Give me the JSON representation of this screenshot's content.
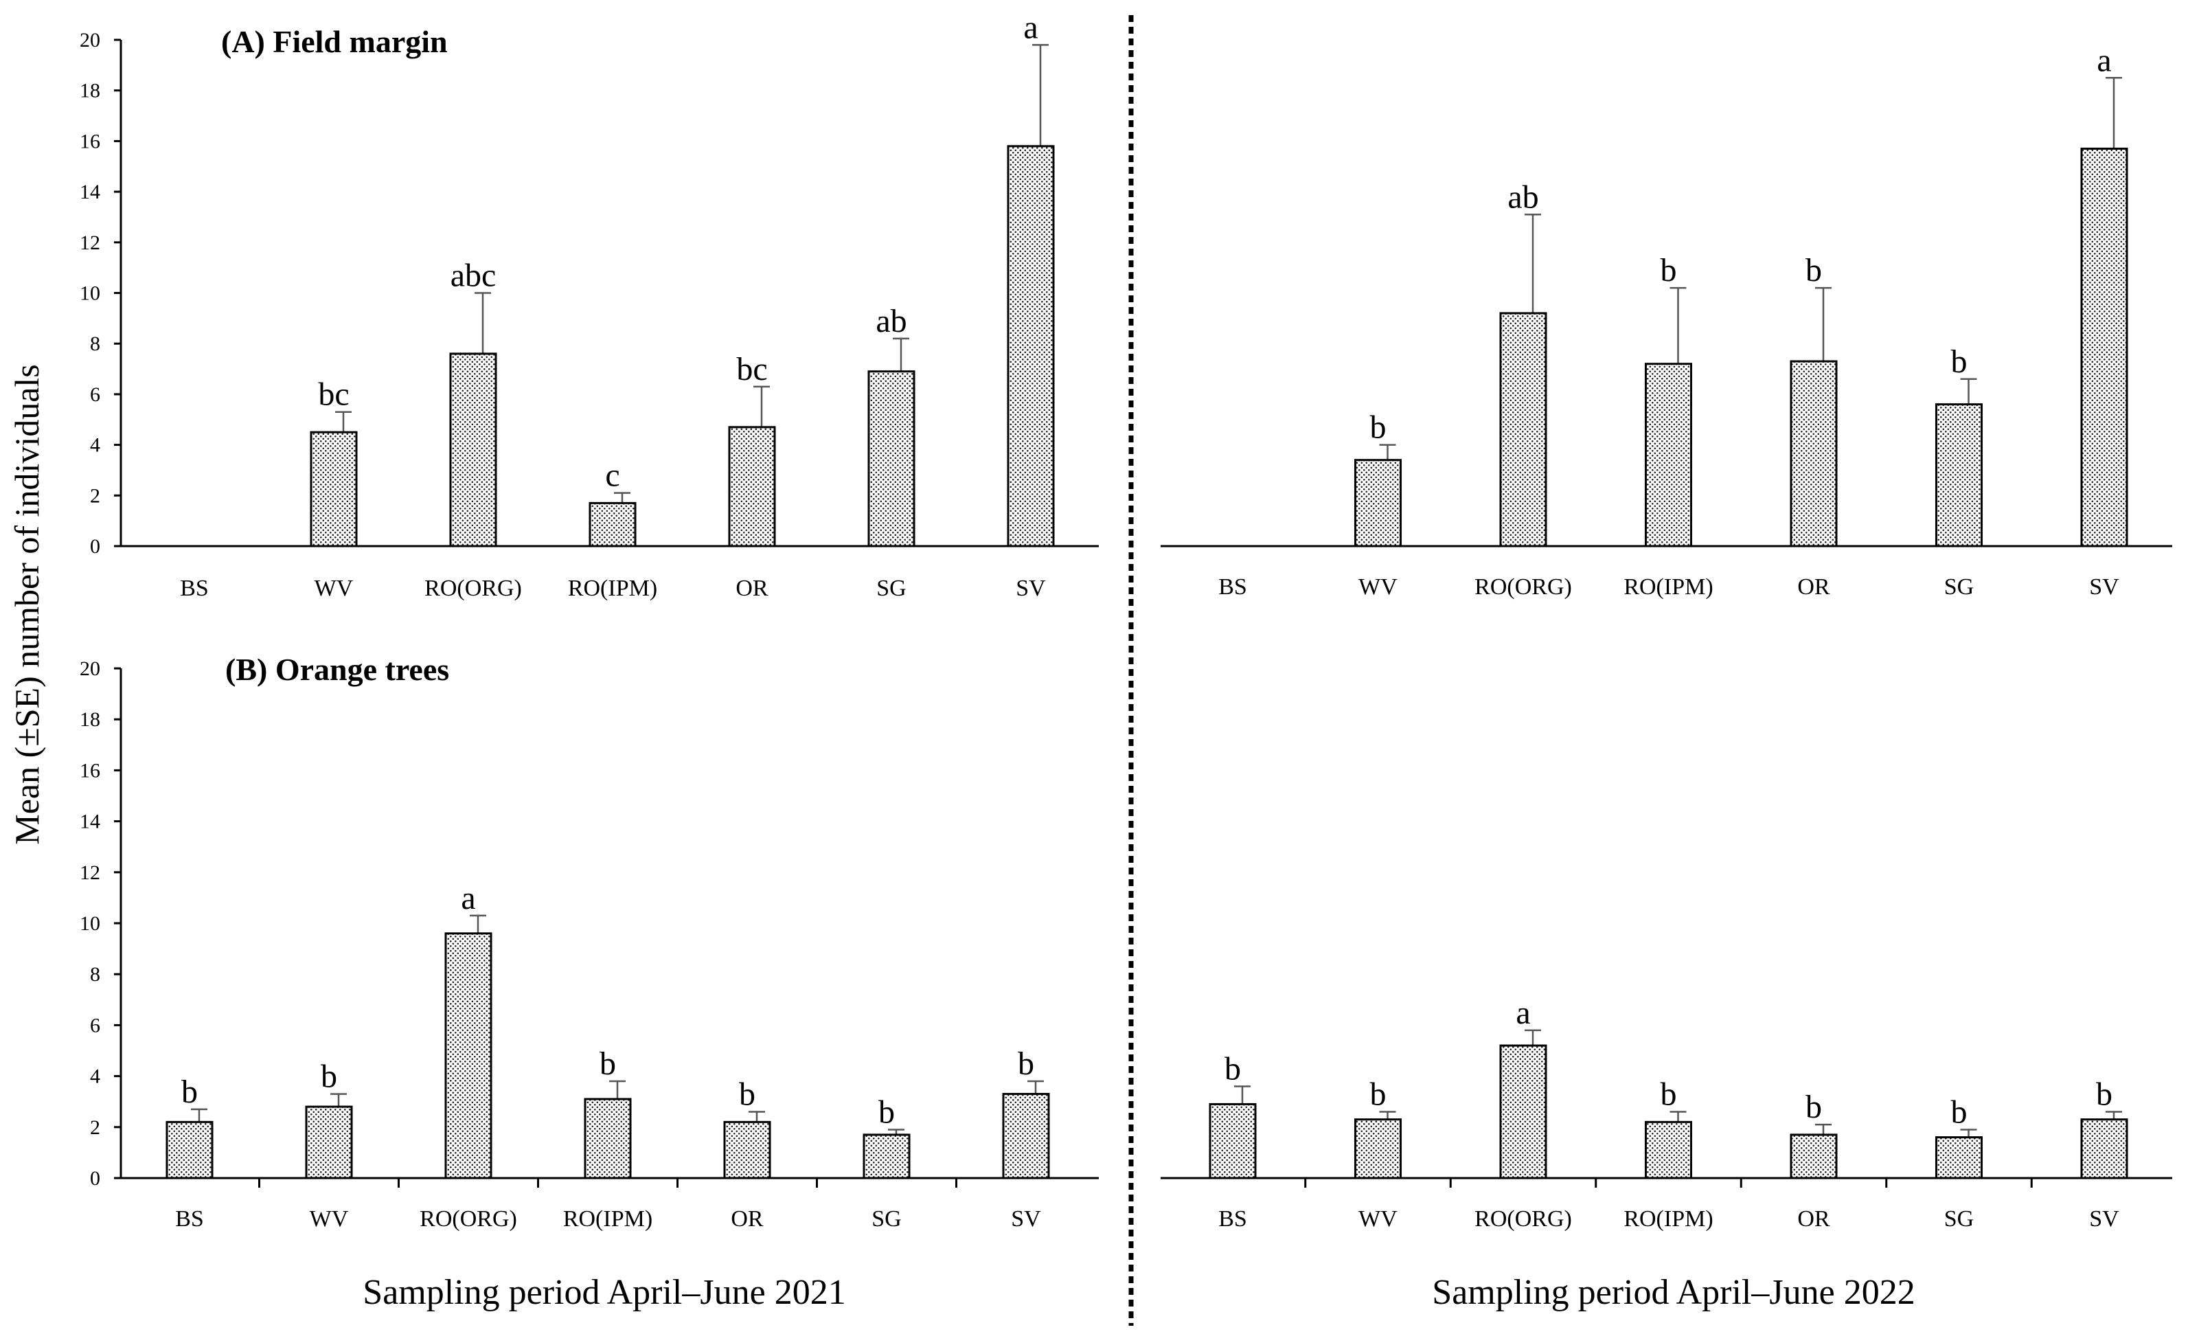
{
  "figure": {
    "ylabel": "Mean (±SE) number of individuals",
    "period_left": "Sampling period April–June 2021",
    "period_right": "Sampling period April–June 2022"
  },
  "chart_data": [
    {
      "id": "A-2021",
      "type": "bar",
      "title": "(A) Field margin",
      "xlabel": "Sampling period April–June 2021",
      "ylabel": "Mean (±SE) number of individuals",
      "categories": [
        "BS",
        "WV",
        "RO(ORG)",
        "RO(IPM)",
        "OR",
        "SG",
        "SV"
      ],
      "values": [
        0,
        4.5,
        7.6,
        1.7,
        4.7,
        6.9,
        15.8
      ],
      "errors": [
        0,
        0.8,
        2.4,
        0.4,
        1.6,
        1.3,
        4.0
      ],
      "letters": [
        "",
        "bc",
        "abc",
        "c",
        "bc",
        "ab",
        "a"
      ],
      "ylim": [
        0,
        20
      ],
      "yticks": [
        0,
        2,
        4,
        6,
        8,
        10,
        12,
        14,
        16,
        18,
        20
      ],
      "xticks": false
    },
    {
      "id": "A-2022",
      "type": "bar",
      "title": "",
      "xlabel": "Sampling period April–June 2022",
      "ylabel": "",
      "categories": [
        "BS",
        "WV",
        "RO(ORG)",
        "RO(IPM)",
        "OR",
        "SG",
        "SV"
      ],
      "values": [
        0,
        3.4,
        9.2,
        7.2,
        7.3,
        5.6,
        15.7
      ],
      "errors": [
        0,
        0.6,
        3.9,
        3.0,
        2.9,
        1.0,
        2.8
      ],
      "letters": [
        "",
        "b",
        "ab",
        "b",
        "b",
        "b",
        "a"
      ],
      "ylim": [
        0,
        20
      ],
      "yticks": [],
      "xticks": false
    },
    {
      "id": "B-2021",
      "type": "bar",
      "title": "(B) Orange trees",
      "xlabel": "Sampling period April–June 2021",
      "ylabel": "Mean (±SE) number of individuals",
      "categories": [
        "BS",
        "WV",
        "RO(ORG)",
        "RO(IPM)",
        "OR",
        "SG",
        "SV"
      ],
      "values": [
        2.2,
        2.8,
        9.6,
        3.1,
        2.2,
        1.7,
        3.3
      ],
      "errors": [
        0.5,
        0.5,
        0.7,
        0.7,
        0.4,
        0.2,
        0.5
      ],
      "letters": [
        "b",
        "b",
        "a",
        "b",
        "b",
        "b",
        "b"
      ],
      "ylim": [
        0,
        20
      ],
      "yticks": [
        0,
        2,
        4,
        6,
        8,
        10,
        12,
        14,
        16,
        18,
        20
      ],
      "xticks": true
    },
    {
      "id": "B-2022",
      "type": "bar",
      "title": "",
      "xlabel": "Sampling period April–June 2022",
      "ylabel": "",
      "categories": [
        "BS",
        "WV",
        "RO(ORG)",
        "RO(IPM)",
        "OR",
        "SG",
        "SV"
      ],
      "values": [
        2.9,
        2.3,
        5.2,
        2.2,
        1.7,
        1.6,
        2.3
      ],
      "errors": [
        0.7,
        0.3,
        0.6,
        0.4,
        0.4,
        0.3,
        0.3
      ],
      "letters": [
        "b",
        "b",
        "a",
        "b",
        "b",
        "b",
        "b"
      ],
      "ylim": [
        0,
        20
      ],
      "yticks": [],
      "xticks": true
    }
  ]
}
